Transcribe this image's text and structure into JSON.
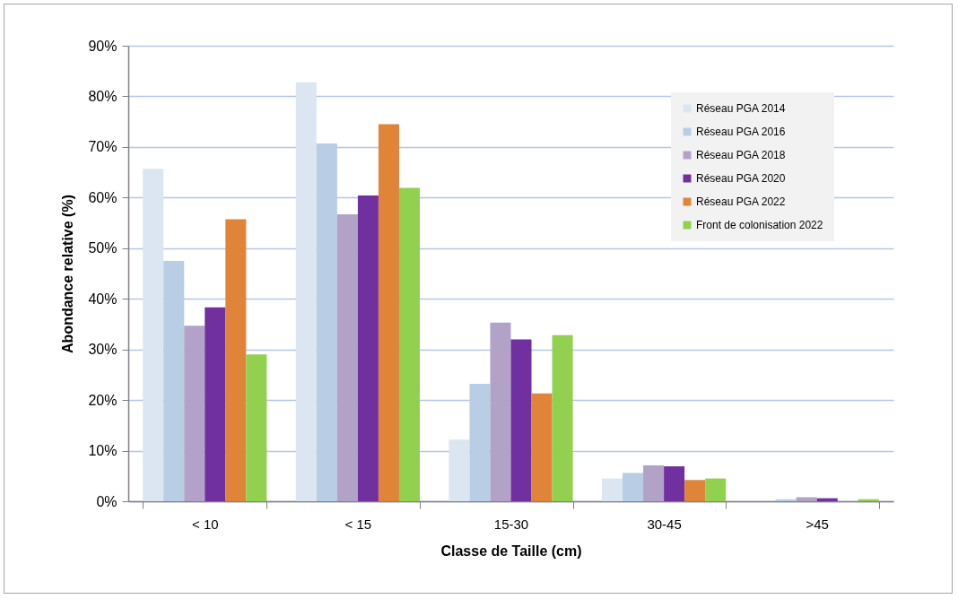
{
  "chart_data": {
    "type": "bar",
    "xlabel": "Classe de Taille (cm)",
    "ylabel": "Abondance relative (%)",
    "categories": [
      "< 10",
      "< 15",
      "15-30",
      "30-45",
      ">45"
    ],
    "ylim": [
      0,
      90
    ],
    "yticks": [
      {
        "value": 0,
        "label": "0%"
      },
      {
        "value": 10,
        "label": "10%"
      },
      {
        "value": 20,
        "label": "20%"
      },
      {
        "value": 30,
        "label": "30%"
      },
      {
        "value": 40,
        "label": "40%"
      },
      {
        "value": 50,
        "label": "50%"
      },
      {
        "value": 60,
        "label": "60%"
      },
      {
        "value": 70,
        "label": "70%"
      },
      {
        "value": 80,
        "label": "80%"
      },
      {
        "value": 90,
        "label": "90%"
      }
    ],
    "grid": "y",
    "legend": "top right",
    "series": [
      {
        "name": "Réseau PGA 2014",
        "color": "#dce6f2",
        "values": [
          65.7,
          82.8,
          12.2,
          4.5,
          null
        ]
      },
      {
        "name": "Réseau PGA 2016",
        "color": "#b9cde5",
        "values": [
          47.5,
          70.7,
          23.2,
          5.6,
          0.4
        ]
      },
      {
        "name": "Réseau PGA 2018",
        "color": "#b3a2c7",
        "values": [
          34.7,
          56.7,
          35.3,
          7.1,
          0.8
        ]
      },
      {
        "name": "Réseau PGA 2020",
        "color": "#7030a0",
        "values": [
          38.3,
          60.4,
          32.0,
          6.9,
          0.6
        ]
      },
      {
        "name": "Réseau PGA 2022",
        "color": "#e0843a",
        "values": [
          55.7,
          74.5,
          21.3,
          4.2,
          0
        ]
      },
      {
        "name": "Front de colonisation 2022",
        "color": "#92d050",
        "values": [
          29.0,
          61.9,
          32.8,
          4.5,
          0.4
        ]
      }
    ]
  }
}
